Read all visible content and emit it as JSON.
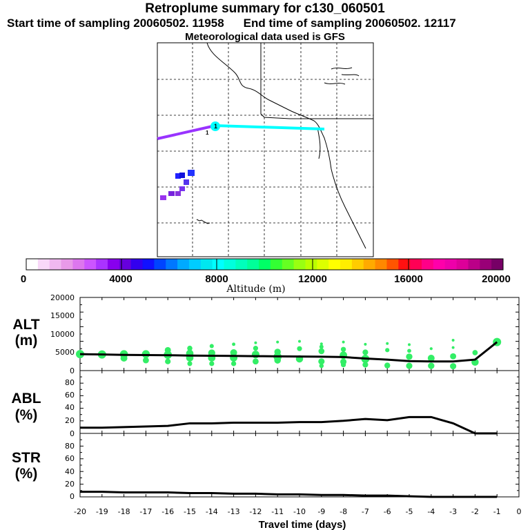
{
  "header": {
    "title": "Retroplume summary for c130_060501",
    "start_label": "Start time of sampling 20060502. 11958",
    "end_label": "End time of sampling 20060502. 12117",
    "met_label": "Meteorological data used is GFS"
  },
  "colorbar": {
    "label": "Altitude (m)",
    "ticks": [
      "0",
      "4000",
      "8000",
      "12000",
      "16000",
      "20000"
    ],
    "colors": [
      "#ffffff",
      "#f8d8f8",
      "#f0b8f0",
      "#e89ae8",
      "#dd77ee",
      "#cc55ff",
      "#aa33ff",
      "#8800ee",
      "#6600dd",
      "#3300ee",
      "#1111ff",
      "#0044ff",
      "#0077ff",
      "#00aaff",
      "#00ccff",
      "#00e8f0",
      "#00ffff",
      "#00ffdd",
      "#00ffbb",
      "#00ff99",
      "#00ff66",
      "#33ff33",
      "#66ff22",
      "#99ff11",
      "#bbff00",
      "#ddff00",
      "#ffff00",
      "#ffee00",
      "#ffcc00",
      "#ffaa00",
      "#ff8800",
      "#ff5500",
      "#ff1111",
      "#ff0055",
      "#ff0088",
      "#ff00aa",
      "#ee00aa",
      "#dd0099",
      "#bb0088",
      "#990077",
      "#770066"
    ]
  },
  "chart_data": [
    {
      "type": "scatter",
      "panel": "ALT",
      "ylabel_line1": "ALT",
      "ylabel_line2": "(m)",
      "ylim": [
        0,
        20000
      ],
      "yticks": [
        "20000",
        "15000",
        "10000",
        "5000",
        "0"
      ],
      "x": [
        -20,
        -19,
        -18,
        -17,
        -16,
        -15,
        -14,
        -13,
        -12,
        -11,
        -10,
        -9,
        -8,
        -7,
        -6,
        -5,
        -4,
        -3,
        -2,
        -1
      ],
      "mean_altitude": [
        4500,
        4400,
        4300,
        4250,
        4200,
        4100,
        4050,
        4000,
        3950,
        3900,
        3850,
        3800,
        3700,
        3300,
        3000,
        2600,
        2500,
        2500,
        3000,
        7800
      ],
      "plume_altitudes": [
        [
          4500
        ],
        [
          4400
        ],
        [
          3400,
          4500
        ],
        [
          2800,
          4500
        ],
        [
          2500,
          4300,
          5600
        ],
        [
          1900,
          3500,
          4700,
          6100
        ],
        [
          1900,
          3500,
          4800,
          6700
        ],
        [
          1900,
          3500,
          4900,
          7200
        ],
        [
          2500,
          4400,
          6100,
          7600
        ],
        [
          2800,
          3800,
          5100,
          7800
        ],
        [
          3200,
          6000,
          8000
        ],
        [
          1300,
          2500,
          5300,
          6500,
          7300
        ],
        [
          1600,
          2400,
          4200,
          5800,
          7800
        ],
        [
          1600,
          3200,
          5000,
          7200
        ],
        [
          1400,
          5600,
          7400
        ],
        [
          1300,
          3800,
          5400,
          7100
        ],
        [
          1300,
          3400,
          6000
        ],
        [
          1200,
          3900,
          6300,
          8300
        ],
        [
          2300,
          4900
        ],
        [
          7800
        ]
      ]
    },
    {
      "type": "line",
      "panel": "ABL",
      "ylabel_line1": "ABL",
      "ylabel_line2": "(%)",
      "ylim": [
        0,
        100
      ],
      "yticks": [
        "80",
        "60",
        "40",
        "20",
        "0"
      ],
      "x": [
        -20,
        -19,
        -18,
        -17,
        -16,
        -15,
        -14,
        -13,
        -12,
        -11,
        -10,
        -9,
        -8,
        -7,
        -6,
        -5,
        -4,
        -3,
        -2,
        -1
      ],
      "values": [
        9,
        9,
        10,
        11,
        12,
        16,
        16,
        17,
        17,
        17,
        18,
        18,
        20,
        23,
        21,
        26,
        26,
        16,
        0,
        0
      ]
    },
    {
      "type": "line",
      "panel": "STR",
      "ylabel_line1": "STR",
      "ylabel_line2": "(%)",
      "ylim": [
        0,
        100
      ],
      "yticks": [
        "80",
        "60",
        "40",
        "20",
        "0"
      ],
      "x": [
        -20,
        -19,
        -18,
        -17,
        -16,
        -15,
        -14,
        -13,
        -12,
        -11,
        -10,
        -9,
        -8,
        -7,
        -6,
        -5,
        -4,
        -3,
        -2,
        -1
      ],
      "values": [
        8,
        8,
        7,
        7,
        7,
        6,
        6,
        5,
        5,
        4,
        4,
        3,
        3,
        2,
        2,
        1,
        0,
        0,
        0,
        0
      ]
    }
  ],
  "xaxis": {
    "label": "Travel time (days)",
    "ticks": [
      "-20",
      "-19",
      "-18",
      "-17",
      "-16",
      "-15",
      "-14",
      "-13",
      "-12",
      "-11",
      "-10",
      "-9",
      "-8",
      "-7",
      "-6",
      "-5",
      "-4",
      "-3",
      "-2",
      "-1",
      "0"
    ]
  },
  "map": {
    "marker_label": "1"
  }
}
